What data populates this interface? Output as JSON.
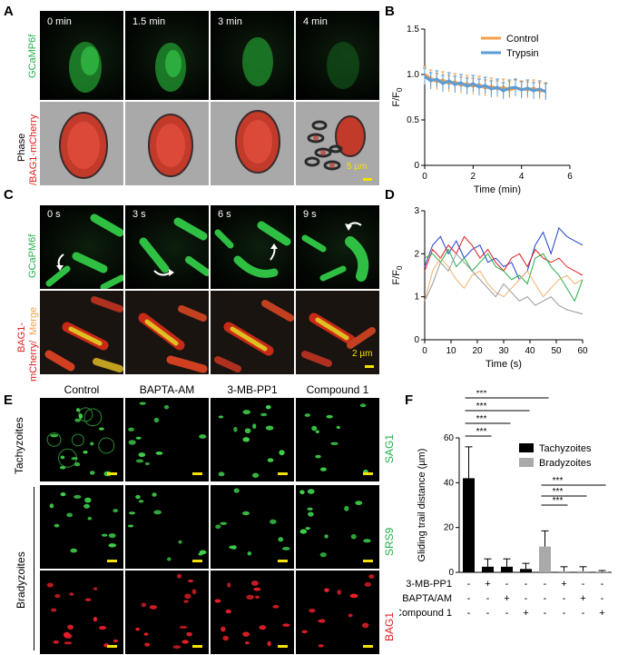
{
  "panels": {
    "A": "A",
    "B": "B",
    "C": "C",
    "D": "D",
    "E": "E",
    "F": "F"
  },
  "panelA": {
    "times": [
      "0 min",
      "1.5 min",
      "3 min",
      "4 min"
    ],
    "row1_label": "GCaMP6f",
    "row2_label_a": "Phase",
    "row2_label_b": "/BAG1-mCherry",
    "scale": "5 µm"
  },
  "panelC": {
    "times": [
      "0 s",
      "3 s",
      "6 s",
      "9 s"
    ],
    "row1_label": "GCaPM6f",
    "row2_label_a": "BAG1-",
    "row2_label_b": "mCherry/",
    "row2_label_c": "Merge",
    "scale": "2 µm"
  },
  "panelE": {
    "columns": [
      "Control",
      "BAPTA-AM",
      "3-MB-PP1",
      "Compound 1"
    ],
    "group1": "Tachyzoites",
    "group2": "Bradyzoites",
    "row_labels": [
      "SAG1",
      "SRS9",
      "BAG1"
    ]
  },
  "chart_data": [
    {
      "panel": "B",
      "type": "line",
      "xlabel": "Time (min)",
      "ylabel": "F/F0",
      "xlim": [
        0,
        6
      ],
      "ylim": [
        0,
        1.5
      ],
      "xticks": [
        "0",
        "2",
        "4",
        "6"
      ],
      "yticks": [
        "0",
        "0.5",
        "1.0",
        "1.5"
      ],
      "legend_position": "top-right",
      "series": [
        {
          "name": "Control",
          "color": "#f5a04a",
          "x": [
            0,
            0.25,
            0.5,
            0.75,
            1,
            1.25,
            1.5,
            1.75,
            2,
            2.25,
            2.5,
            2.75,
            3,
            3.25,
            3.5,
            3.75,
            4,
            4.25,
            4.5,
            4.75,
            5
          ],
          "y": [
            1.0,
            0.96,
            0.92,
            0.94,
            0.9,
            0.92,
            0.88,
            0.9,
            0.87,
            0.89,
            0.85,
            0.87,
            0.84,
            0.86,
            0.83,
            0.85,
            0.84,
            0.83,
            0.85,
            0.82,
            0.82
          ]
        },
        {
          "name": "Trypsin",
          "color": "#5b9bd5",
          "x": [
            0,
            0.25,
            0.5,
            0.75,
            1,
            1.25,
            1.5,
            1.75,
            2,
            2.25,
            2.5,
            2.75,
            3,
            3.25,
            3.5,
            3.75,
            4,
            4.25,
            4.5,
            4.75,
            5
          ],
          "y": [
            0.98,
            0.93,
            0.95,
            0.9,
            0.93,
            0.89,
            0.91,
            0.87,
            0.9,
            0.86,
            0.88,
            0.84,
            0.86,
            0.82,
            0.85,
            0.86,
            0.83,
            0.85,
            0.82,
            0.84,
            0.81
          ]
        }
      ]
    },
    {
      "panel": "D",
      "type": "line",
      "xlabel": "Time (s)",
      "ylabel": "F/F0",
      "xlim": [
        0,
        60
      ],
      "ylim": [
        0,
        3
      ],
      "xticks": [
        "0",
        "10",
        "20",
        "30",
        "40",
        "50",
        "60"
      ],
      "yticks": [
        "0",
        "1",
        "2",
        "3"
      ],
      "series": [
        {
          "color": "#1f3fd0",
          "x": [
            0,
            3,
            6,
            9,
            12,
            15,
            18,
            21,
            24,
            27,
            30,
            33,
            36,
            39,
            42,
            45,
            48,
            51,
            54,
            57,
            60
          ],
          "y": [
            1.7,
            2.2,
            2.4,
            2.0,
            2.3,
            1.9,
            2.1,
            2.2,
            1.8,
            1.9,
            1.7,
            1.8,
            1.4,
            1.6,
            2.2,
            2.5,
            2.0,
            2.6,
            2.4,
            2.3,
            2.2
          ]
        },
        {
          "color": "#e02020",
          "x": [
            0,
            3,
            6,
            9,
            12,
            15,
            18,
            21,
            24,
            27,
            30,
            33,
            36,
            39,
            42,
            45,
            48,
            51,
            54,
            57,
            60
          ],
          "y": [
            1.6,
            2.1,
            1.9,
            2.2,
            2.0,
            2.4,
            2.2,
            1.9,
            2.1,
            1.8,
            1.6,
            1.9,
            2.0,
            1.7,
            2.1,
            1.9,
            1.8,
            1.9,
            1.7,
            1.6,
            1.5
          ]
        },
        {
          "color": "#22b04b",
          "x": [
            0,
            3,
            6,
            9,
            12,
            15,
            18,
            21,
            24,
            27,
            30,
            33,
            36,
            39,
            42,
            45,
            48,
            51,
            54,
            57,
            60
          ],
          "y": [
            1.9,
            2.0,
            1.8,
            2.1,
            1.7,
            1.9,
            1.6,
            1.8,
            2.0,
            1.7,
            1.6,
            1.4,
            1.5,
            1.3,
            1.9,
            2.0,
            1.7,
            1.5,
            1.2,
            0.9,
            1.4
          ]
        },
        {
          "color": "#f0b070",
          "x": [
            0,
            3,
            6,
            9,
            12,
            15,
            18,
            21,
            24,
            27,
            30,
            33,
            36,
            39,
            42,
            45,
            48,
            51,
            54,
            57,
            60
          ],
          "y": [
            0.9,
            1.6,
            1.9,
            1.7,
            1.4,
            1.2,
            1.5,
            1.6,
            1.3,
            1.1,
            1.0,
            1.2,
            1.4,
            1.6,
            1.3,
            1.0,
            1.2,
            1.4,
            1.5,
            1.3,
            1.4
          ]
        },
        {
          "color": "#999999",
          "x": [
            0,
            3,
            6,
            9,
            12,
            15,
            18,
            21,
            24,
            27,
            30,
            33,
            36,
            39,
            42,
            45,
            48,
            51,
            54,
            57,
            60
          ],
          "y": [
            0.9,
            1.3,
            1.8,
            1.6,
            2.0,
            1.8,
            1.6,
            1.4,
            1.2,
            1.0,
            1.3,
            1.1,
            0.9,
            1.0,
            0.8,
            0.9,
            1.0,
            0.8,
            0.7,
            0.65,
            0.6
          ]
        }
      ]
    },
    {
      "panel": "F",
      "type": "bar",
      "ylabel": "Gliding trail distance (µm)",
      "ylim": [
        0,
        60
      ],
      "yticks": [
        "0",
        "20",
        "40",
        "60"
      ],
      "legend_position": "top-right",
      "series": [
        {
          "name": "Tachyzoites",
          "color": "#000000",
          "values": [
            42,
            2.5,
            2.5,
            1.5
          ],
          "errors": [
            14,
            3.5,
            3.5,
            2.5
          ]
        },
        {
          "name": "Bradyzoites",
          "color": "#aaaaaa",
          "values": [
            11.5,
            0.5,
            0.5,
            0.3
          ],
          "errors": [
            7,
            2,
            2,
            0.5
          ]
        }
      ],
      "treatment_rows": [
        {
          "label": "3-MB-PP1",
          "marks": [
            "-",
            "+",
            "-",
            "-",
            "-",
            "+",
            "-",
            "-"
          ]
        },
        {
          "label": "BAPTA/AM",
          "marks": [
            "-",
            "-",
            "+",
            "-",
            "-",
            "-",
            "+",
            "-"
          ]
        },
        {
          "label": "Compound 1",
          "marks": [
            "-",
            "-",
            "-",
            "+",
            "-",
            "-",
            "-",
            "+"
          ]
        }
      ],
      "significance": [
        "***",
        "***",
        "***",
        "***",
        "***",
        "***",
        "***"
      ]
    }
  ]
}
